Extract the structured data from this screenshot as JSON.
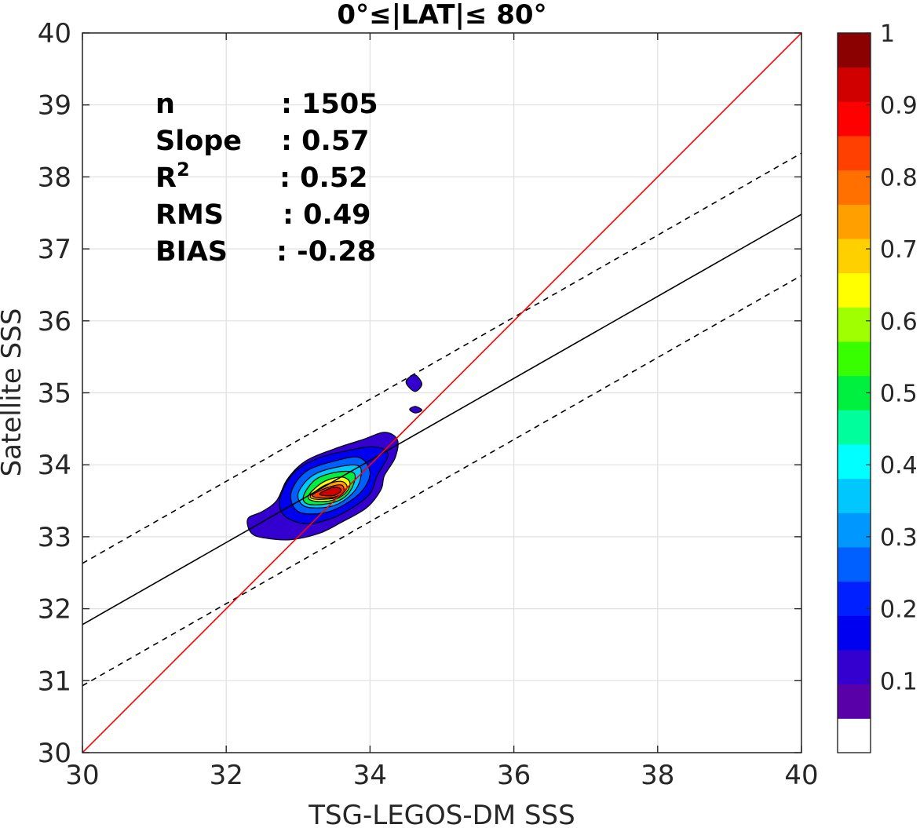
{
  "chart_data": {
    "type": "contour-density",
    "title": "0°≤|LAT|≤ 80°",
    "xlabel": "TSG-LEGOS-DM SSS",
    "ylabel": "Satellite SSS",
    "xlim": [
      30,
      40
    ],
    "ylim": [
      30,
      40
    ],
    "xticks": [
      "30",
      "32",
      "34",
      "36",
      "38",
      "40"
    ],
    "yticks": [
      "30",
      "31",
      "32",
      "33",
      "34",
      "35",
      "36",
      "37",
      "38",
      "39",
      "40"
    ],
    "grid": true,
    "stats": [
      {
        "label": "n",
        "sep": ":",
        "value": "1505"
      },
      {
        "label": "Slope",
        "sep": ":",
        "value": "0.57"
      },
      {
        "label": "R",
        "sup": "2",
        "sep": ":",
        "value": "0.52"
      },
      {
        "label": "RMS",
        "sep": ":",
        "value": "0.49"
      },
      {
        "label": "BIAS",
        "sep": ":",
        "value": "-0.28"
      }
    ],
    "lines": {
      "identity": {
        "color": "#ff0000",
        "x": [
          30,
          40
        ],
        "y": [
          30,
          40
        ]
      },
      "regression": {
        "color": "#000000",
        "style": "solid",
        "x": [
          30,
          40
        ],
        "y": [
          31.78,
          37.48
        ]
      },
      "upper_bound": {
        "color": "#000000",
        "style": "dashed",
        "x": [
          30,
          40
        ],
        "y": [
          32.63,
          38.33
        ]
      },
      "lower_bound": {
        "color": "#000000",
        "style": "dashed",
        "x": [
          30,
          40
        ],
        "y": [
          30.93,
          36.63
        ]
      }
    },
    "density_peak": {
      "x": 33.45,
      "y": 33.63
    },
    "colorbar": {
      "range": [
        0,
        1
      ],
      "ticks": [
        "0.1",
        "0.2",
        "0.3",
        "0.4",
        "0.5",
        "0.6",
        "0.7",
        "0.8",
        "0.9",
        "1"
      ],
      "colors": [
        "#ffffff",
        "#5a00a8",
        "#3300d0",
        "#0000f0",
        "#0020ff",
        "#0060ff",
        "#0098ff",
        "#00c8ff",
        "#00ffff",
        "#00ff9c",
        "#00f040",
        "#38ff00",
        "#a0ff00",
        "#ffff00",
        "#ffd000",
        "#ffa000",
        "#ff7000",
        "#ff4000",
        "#ff0000",
        "#d00000",
        "#8b0000"
      ]
    },
    "contours": [
      {
        "level": 0.05,
        "color": "#3300d0",
        "points": [
          [
            32.35,
            33.05
          ],
          [
            32.3,
            33.25
          ],
          [
            32.5,
            33.35
          ],
          [
            32.7,
            33.5
          ],
          [
            32.85,
            33.8
          ],
          [
            33.1,
            34.05
          ],
          [
            33.5,
            34.22
          ],
          [
            33.9,
            34.35
          ],
          [
            34.2,
            34.45
          ],
          [
            34.38,
            34.35
          ],
          [
            34.35,
            34.1
          ],
          [
            34.2,
            33.85
          ],
          [
            34.15,
            33.65
          ],
          [
            33.95,
            33.4
          ],
          [
            33.6,
            33.2
          ],
          [
            33.3,
            33.05
          ],
          [
            32.9,
            32.96
          ],
          [
            32.55,
            32.98
          ]
        ]
      },
      {
        "level": 0.1,
        "color": "#0000f0",
        "points": [
          [
            32.75,
            33.55
          ],
          [
            32.95,
            33.9
          ],
          [
            33.3,
            34.1
          ],
          [
            33.7,
            34.2
          ],
          [
            34.05,
            34.25
          ],
          [
            34.25,
            34.15
          ],
          [
            34.1,
            33.85
          ],
          [
            34.0,
            33.6
          ],
          [
            33.75,
            33.4
          ],
          [
            33.45,
            33.25
          ],
          [
            33.1,
            33.18
          ],
          [
            32.8,
            33.3
          ]
        ]
      },
      {
        "level": 0.2,
        "color": "#0060ff",
        "points": [
          [
            32.9,
            33.6
          ],
          [
            33.1,
            33.9
          ],
          [
            33.5,
            34.05
          ],
          [
            33.85,
            34.1
          ],
          [
            34.0,
            33.9
          ],
          [
            33.9,
            33.65
          ],
          [
            33.65,
            33.45
          ],
          [
            33.35,
            33.33
          ],
          [
            33.0,
            33.35
          ]
        ]
      },
      {
        "level": 0.35,
        "color": "#00c8ff",
        "points": [
          [
            33.0,
            33.6
          ],
          [
            33.2,
            33.85
          ],
          [
            33.55,
            33.97
          ],
          [
            33.85,
            33.98
          ],
          [
            33.85,
            33.75
          ],
          [
            33.7,
            33.55
          ],
          [
            33.45,
            33.42
          ],
          [
            33.1,
            33.42
          ]
        ]
      },
      {
        "level": 0.5,
        "color": "#00f040",
        "points": [
          [
            33.08,
            33.58
          ],
          [
            33.25,
            33.8
          ],
          [
            33.55,
            33.9
          ],
          [
            33.78,
            33.88
          ],
          [
            33.75,
            33.68
          ],
          [
            33.6,
            33.52
          ],
          [
            33.35,
            33.45
          ],
          [
            33.12,
            33.46
          ]
        ]
      },
      {
        "level": 0.65,
        "color": "#ffff00",
        "points": [
          [
            33.15,
            33.58
          ],
          [
            33.35,
            33.76
          ],
          [
            33.6,
            33.83
          ],
          [
            33.72,
            33.75
          ],
          [
            33.65,
            33.6
          ],
          [
            33.45,
            33.5
          ],
          [
            33.2,
            33.5
          ]
        ]
      },
      {
        "level": 0.75,
        "color": "#ffa000",
        "points": [
          [
            33.18,
            33.58
          ],
          [
            33.38,
            33.72
          ],
          [
            33.6,
            33.77
          ],
          [
            33.68,
            33.68
          ],
          [
            33.55,
            33.55
          ],
          [
            33.35,
            33.52
          ],
          [
            33.2,
            33.53
          ]
        ]
      },
      {
        "level": 0.85,
        "color": "#ff4000",
        "points": [
          [
            33.2,
            33.58
          ],
          [
            33.4,
            33.68
          ],
          [
            33.6,
            33.72
          ],
          [
            33.63,
            33.62
          ],
          [
            33.5,
            33.55
          ],
          [
            33.3,
            33.54
          ]
        ]
      },
      {
        "level": 0.92,
        "color": "#d00000",
        "points": [
          [
            33.3,
            33.6
          ],
          [
            33.5,
            33.69
          ],
          [
            33.6,
            33.65
          ],
          [
            33.52,
            33.58
          ],
          [
            33.38,
            33.57
          ]
        ]
      },
      {
        "level": 0.05,
        "color": "#3300d0",
        "points": [
          [
            34.5,
            35.15
          ],
          [
            34.62,
            35.25
          ],
          [
            34.72,
            35.12
          ],
          [
            34.62,
            35.02
          ]
        ]
      },
      {
        "level": 0.05,
        "color": "#3300d0",
        "points": [
          [
            34.55,
            34.77
          ],
          [
            34.63,
            34.81
          ],
          [
            34.72,
            34.76
          ],
          [
            34.63,
            34.72
          ]
        ]
      }
    ]
  }
}
